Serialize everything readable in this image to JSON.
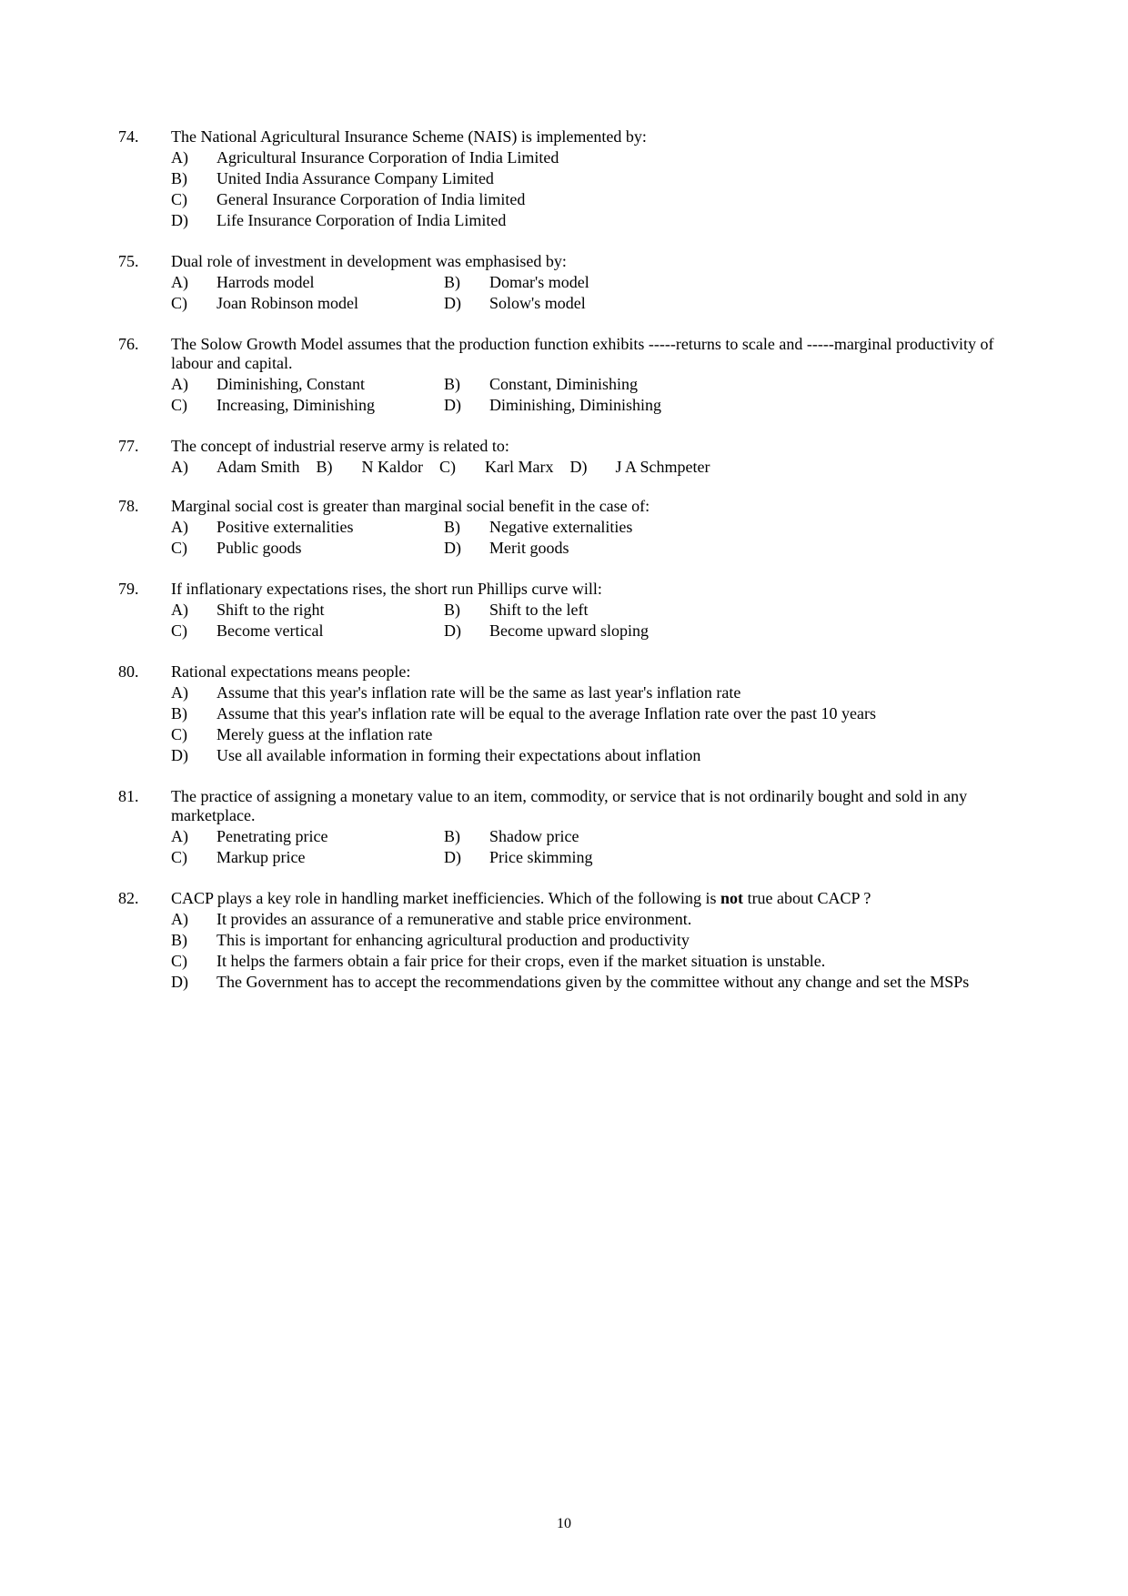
{
  "pageNumber": "10",
  "questions": [
    {
      "num": "74.",
      "stem": "The National Agricultural Insurance Scheme (NAIS) is implemented by:",
      "layout": "vertical",
      "options": [
        {
          "letter": "A)",
          "text": "Agricultural Insurance Corporation of India Limited"
        },
        {
          "letter": "B)",
          "text": "United India Assurance Company Limited"
        },
        {
          "letter": "C)",
          "text": "General Insurance Corporation of India limited"
        },
        {
          "letter": "D)",
          "text": "Life Insurance Corporation of India Limited"
        }
      ]
    },
    {
      "num": "75.",
      "stem": "Dual role of investment in development was emphasised by:",
      "layout": "two-col",
      "rows": [
        [
          {
            "letter": "A)",
            "text": "Harrods model"
          },
          {
            "letter": "B)",
            "text": "Domar's model"
          }
        ],
        [
          {
            "letter": "C)",
            "text": "Joan Robinson model"
          },
          {
            "letter": "D)",
            "text": "Solow's model"
          }
        ]
      ]
    },
    {
      "num": "76.",
      "stem": "The Solow Growth Model assumes that the production function exhibits -----returns to scale and -----marginal productivity of labour and capital.",
      "layout": "two-col",
      "rows": [
        [
          {
            "letter": "A)",
            "text": "Diminishing, Constant"
          },
          {
            "letter": "B)",
            "text": "Constant, Diminishing"
          }
        ],
        [
          {
            "letter": "C)",
            "text": "Increasing, Diminishing"
          },
          {
            "letter": "D)",
            "text": "Diminishing, Diminishing"
          }
        ]
      ]
    },
    {
      "num": "77.",
      "stem": "The concept of industrial reserve army is related to:",
      "layout": "four-col",
      "options": [
        {
          "letter": "A)",
          "text": "Adam Smith"
        },
        {
          "letter": "B)",
          "text": "N Kaldor"
        },
        {
          "letter": "C)",
          "text": "Karl Marx"
        },
        {
          "letter": "D)",
          "text": "J A Schmpeter"
        }
      ]
    },
    {
      "num": "78.",
      "stem": "Marginal social cost is greater than marginal social benefit in the case of:",
      "layout": "two-col",
      "rows": [
        [
          {
            "letter": "A)",
            "text": "Positive externalities"
          },
          {
            "letter": "B)",
            "text": "Negative externalities"
          }
        ],
        [
          {
            "letter": "C)",
            "text": "Public goods"
          },
          {
            "letter": "D)",
            "text": "Merit goods"
          }
        ]
      ]
    },
    {
      "num": "79.",
      "stem": "If inflationary expectations rises, the short run Phillips curve will:",
      "layout": "two-col",
      "rows": [
        [
          {
            "letter": "A)",
            "text": "Shift to the right"
          },
          {
            "letter": "B)",
            "text": "Shift to the left"
          }
        ],
        [
          {
            "letter": "C)",
            "text": "Become vertical"
          },
          {
            "letter": "D)",
            "text": "Become upward sloping"
          }
        ]
      ]
    },
    {
      "num": "80.",
      "stem": "Rational expectations means people:",
      "layout": "vertical",
      "options": [
        {
          "letter": "A)",
          "text": "Assume that this year's inflation rate will be the same as last year's inflation rate"
        },
        {
          "letter": "B)",
          "text": "Assume that this year's inflation rate will be equal to the average Inflation rate over the past 10 years"
        },
        {
          "letter": "C)",
          "text": "Merely guess at the inflation rate"
        },
        {
          "letter": "D)",
          "text": "Use all available information in forming their expectations about inflation"
        }
      ]
    },
    {
      "num": "81.",
      "stem": "The practice of assigning a monetary value to an item, commodity, or service that is not ordinarily bought and sold in any marketplace.",
      "layout": "two-col",
      "rows": [
        [
          {
            "letter": "A)",
            "text": "Penetrating price"
          },
          {
            "letter": "B)",
            "text": "Shadow price"
          }
        ],
        [
          {
            "letter": "C)",
            "text": "Markup price"
          },
          {
            "letter": "D)",
            "text": "Price skimming"
          }
        ]
      ]
    },
    {
      "num": "82.",
      "stemParts": [
        {
          "text": "CACP plays a key role in handling market inefficiencies. Which of the following is ",
          "bold": false
        },
        {
          "text": "not",
          "bold": true
        },
        {
          "text": " true about CACP ?",
          "bold": false
        }
      ],
      "layout": "vertical",
      "options": [
        {
          "letter": "A)",
          "text": "It provides an assurance of a remunerative and stable price environment."
        },
        {
          "letter": "B)",
          "text": "This is important for enhancing agricultural production and productivity"
        },
        {
          "letter": "C)",
          "text": "It helps the farmers obtain a fair price for their crops, even if the market situation is unstable."
        },
        {
          "letter": "D)",
          "text": "The Government has to accept the recommendations given by the committee without any change and set the MSPs"
        }
      ]
    }
  ]
}
